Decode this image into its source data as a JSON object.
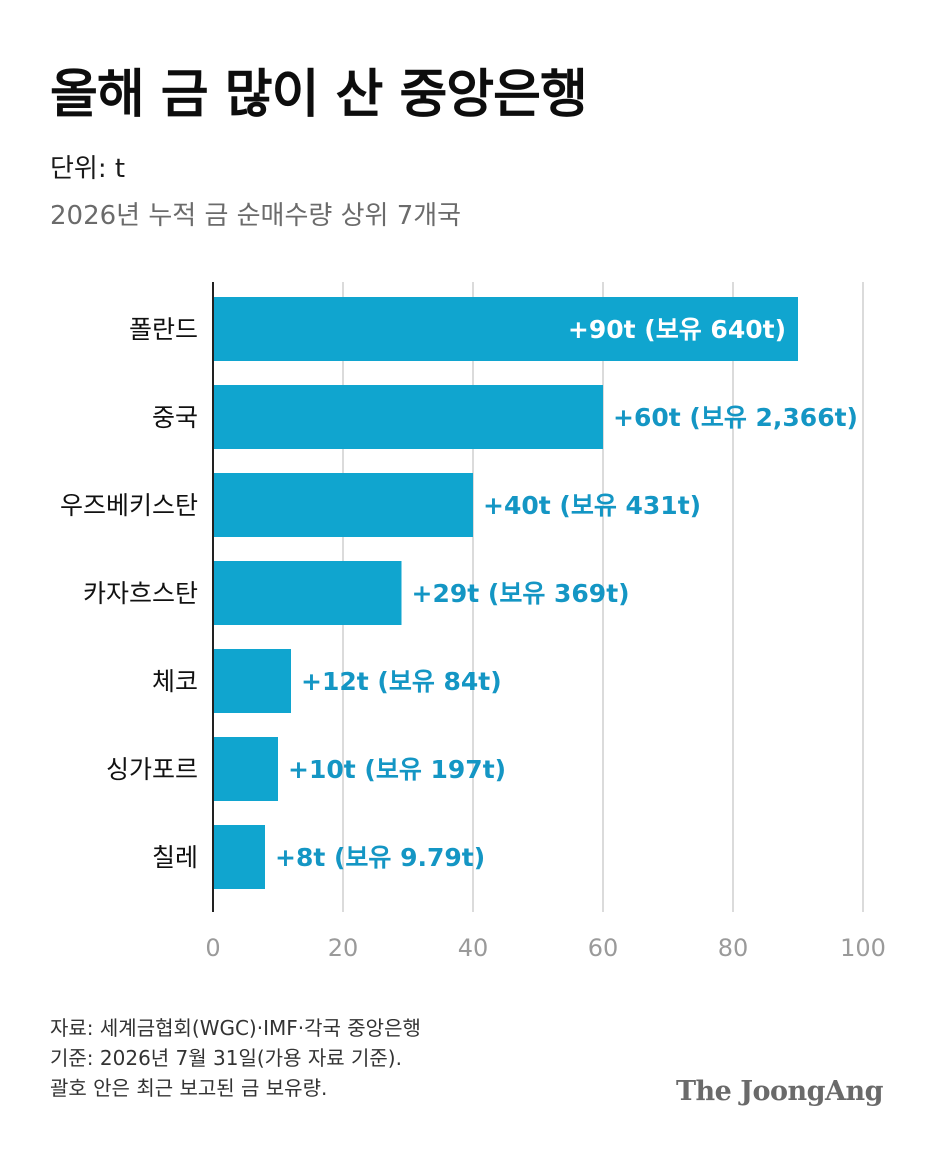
{
  "title": "올해 금 많이 산 중앙은행",
  "unit": "단위: t",
  "subtitle": "2026년 누적 금 순매수량 상위 7개국",
  "colors": {
    "bar": "#10a5cf",
    "label_inside": "#ffffff",
    "label_outside": "#1496c4",
    "grid": "#cfcfcf",
    "tick": "#9a9a9a"
  },
  "chart_data": {
    "type": "bar",
    "orientation": "horizontal",
    "categories": [
      "폴란드",
      "중국",
      "우즈베키스탄",
      "카자흐스탄",
      "체코",
      "싱가포르",
      "칠레"
    ],
    "values": [
      90,
      60,
      40,
      29,
      12,
      10,
      8
    ],
    "data_labels": [
      "+90t (보유 640t)",
      "+60t (보유 2,366t)",
      "+40t (보유 431t)",
      "+29t (보유 369t)",
      "+12t (보유 84t)",
      "+10t (보유 197t)",
      "+8t (보유 9.79t)"
    ],
    "xlim": [
      0,
      100
    ],
    "xticks": [
      0,
      20,
      40,
      60,
      80,
      100
    ],
    "grid": true
  },
  "footer": {
    "line1": "자료: 세계금협회(WGC)·IMF·각국 중앙은행",
    "line2": "기준: 2026년 7월 31일(가용 자료 기준).",
    "line3": "괄호 안은 최근 보고된 금 보유량."
  },
  "logo": "The JoongAng"
}
